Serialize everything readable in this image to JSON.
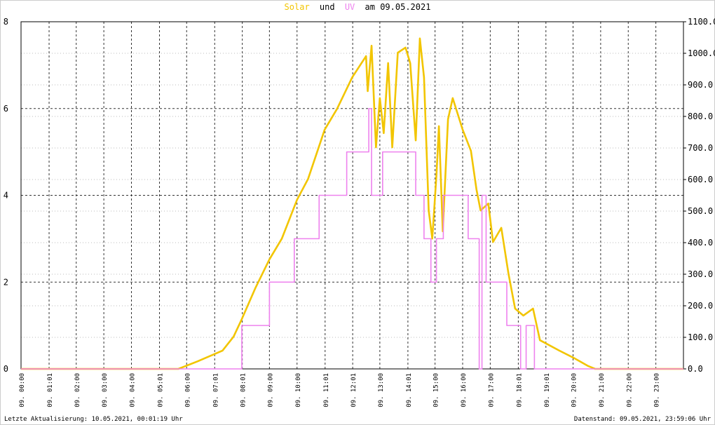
{
  "chart_data": {
    "type": "line",
    "title_joiner": "und",
    "title_suffix": "am 09.05.2021",
    "xlim": [
      0,
      24
    ],
    "xticks": [
      {
        "value": 0,
        "label": "09. 00:00"
      },
      {
        "value": 1.0167,
        "label": "09. 01:01"
      },
      {
        "value": 2,
        "label": "09. 02:00"
      },
      {
        "value": 3,
        "label": "09. 03:00"
      },
      {
        "value": 4,
        "label": "09. 04:00"
      },
      {
        "value": 5.0167,
        "label": "09. 05:01"
      },
      {
        "value": 6,
        "label": "09. 06:00"
      },
      {
        "value": 7.0167,
        "label": "09. 07:01"
      },
      {
        "value": 8.0167,
        "label": "09. 08:01"
      },
      {
        "value": 9,
        "label": "09. 09:00"
      },
      {
        "value": 10,
        "label": "09. 10:00"
      },
      {
        "value": 11.0167,
        "label": "09. 11:01"
      },
      {
        "value": 12.0167,
        "label": "09. 12:01"
      },
      {
        "value": 13,
        "label": "09. 13:00"
      },
      {
        "value": 14.0167,
        "label": "09. 14:01"
      },
      {
        "value": 15,
        "label": "09. 15:00"
      },
      {
        "value": 16,
        "label": "09. 16:00"
      },
      {
        "value": 17,
        "label": "09. 17:00"
      },
      {
        "value": 18.0167,
        "label": "09. 18:01"
      },
      {
        "value": 19.0167,
        "label": "09. 19:01"
      },
      {
        "value": 20,
        "label": "09. 20:00"
      },
      {
        "value": 21,
        "label": "09. 21:00"
      },
      {
        "value": 22,
        "label": "09. 22:00"
      },
      {
        "value": 23,
        "label": "09. 23:00"
      }
    ],
    "ylim": [
      0,
      8
    ],
    "yticks": [
      0,
      2,
      4,
      6,
      8
    ],
    "y2lim": [
      0,
      1100
    ],
    "y2ticks": [
      {
        "value": 0,
        "label": "0.0"
      },
      {
        "value": 100,
        "label": "100.0"
      },
      {
        "value": 200,
        "label": "200.0"
      },
      {
        "value": 300,
        "label": "300.0"
      },
      {
        "value": 400,
        "label": "400.0"
      },
      {
        "value": 500,
        "label": "500.0"
      },
      {
        "value": 600,
        "label": "600.0"
      },
      {
        "value": 700,
        "label": "700.0"
      },
      {
        "value": 800,
        "label": "800.0"
      },
      {
        "value": 900,
        "label": "900.0"
      },
      {
        "value": 1000,
        "label": "1000.0"
      },
      {
        "value": 1100,
        "label": "1100.0"
      }
    ],
    "grid": true,
    "series": [
      {
        "name": "Solar",
        "color": "#f2c500",
        "axis": "y2",
        "step": false,
        "x": [
          0,
          5.7,
          6.4,
          7.3,
          7.7,
          8.0,
          8.5,
          9.0,
          9.45,
          10.0,
          10.4,
          11.0,
          11.45,
          12.0,
          12.5,
          12.56,
          12.7,
          12.86,
          13.0,
          13.14,
          13.3,
          13.45,
          13.65,
          13.93,
          14.1,
          14.3,
          14.45,
          14.6,
          14.77,
          14.9,
          15.05,
          15.14,
          15.28,
          15.47,
          15.64,
          16.0,
          16.3,
          16.5,
          16.65,
          16.93,
          17.1,
          17.4,
          17.66,
          17.9,
          18.2,
          18.55,
          18.8,
          19.5,
          20.0,
          20.55,
          20.8,
          24
        ],
        "values": [
          0,
          0,
          24,
          58,
          102,
          158,
          258,
          347,
          413,
          536,
          602,
          758,
          824,
          924,
          991,
          880,
          1024,
          702,
          858,
          747,
          969,
          702,
          1002,
          1018,
          969,
          724,
          1047,
          924,
          502,
          413,
          613,
          769,
          436,
          791,
          858,
          758,
          691,
          569,
          502,
          524,
          402,
          447,
          302,
          191,
          169,
          191,
          91,
          58,
          36,
          9,
          0,
          0
        ]
      },
      {
        "name": "UV",
        "color": "#ee82ee",
        "axis": "y",
        "step": true,
        "x": [
          0,
          8.0,
          9.0,
          9.9,
          10.8,
          11.8,
          12.6,
          12.7,
          13.1,
          14.3,
          14.6,
          14.85,
          15.05,
          15.3,
          16.2,
          16.6,
          16.7,
          16.85,
          17.6,
          18.1,
          18.3,
          18.6,
          24
        ],
        "values": [
          0,
          1,
          2,
          3,
          4,
          5,
          6,
          4,
          5,
          4,
          3,
          2,
          3,
          4,
          3,
          0,
          4,
          2,
          1,
          0,
          1,
          0,
          0
        ]
      }
    ],
    "annotations": [
      "Letzte Aktualisierung: 10.05.2021, 00:01:19 Uhr",
      "Datenstand: 09.05.2021, 23:59:06 Uhr"
    ]
  }
}
